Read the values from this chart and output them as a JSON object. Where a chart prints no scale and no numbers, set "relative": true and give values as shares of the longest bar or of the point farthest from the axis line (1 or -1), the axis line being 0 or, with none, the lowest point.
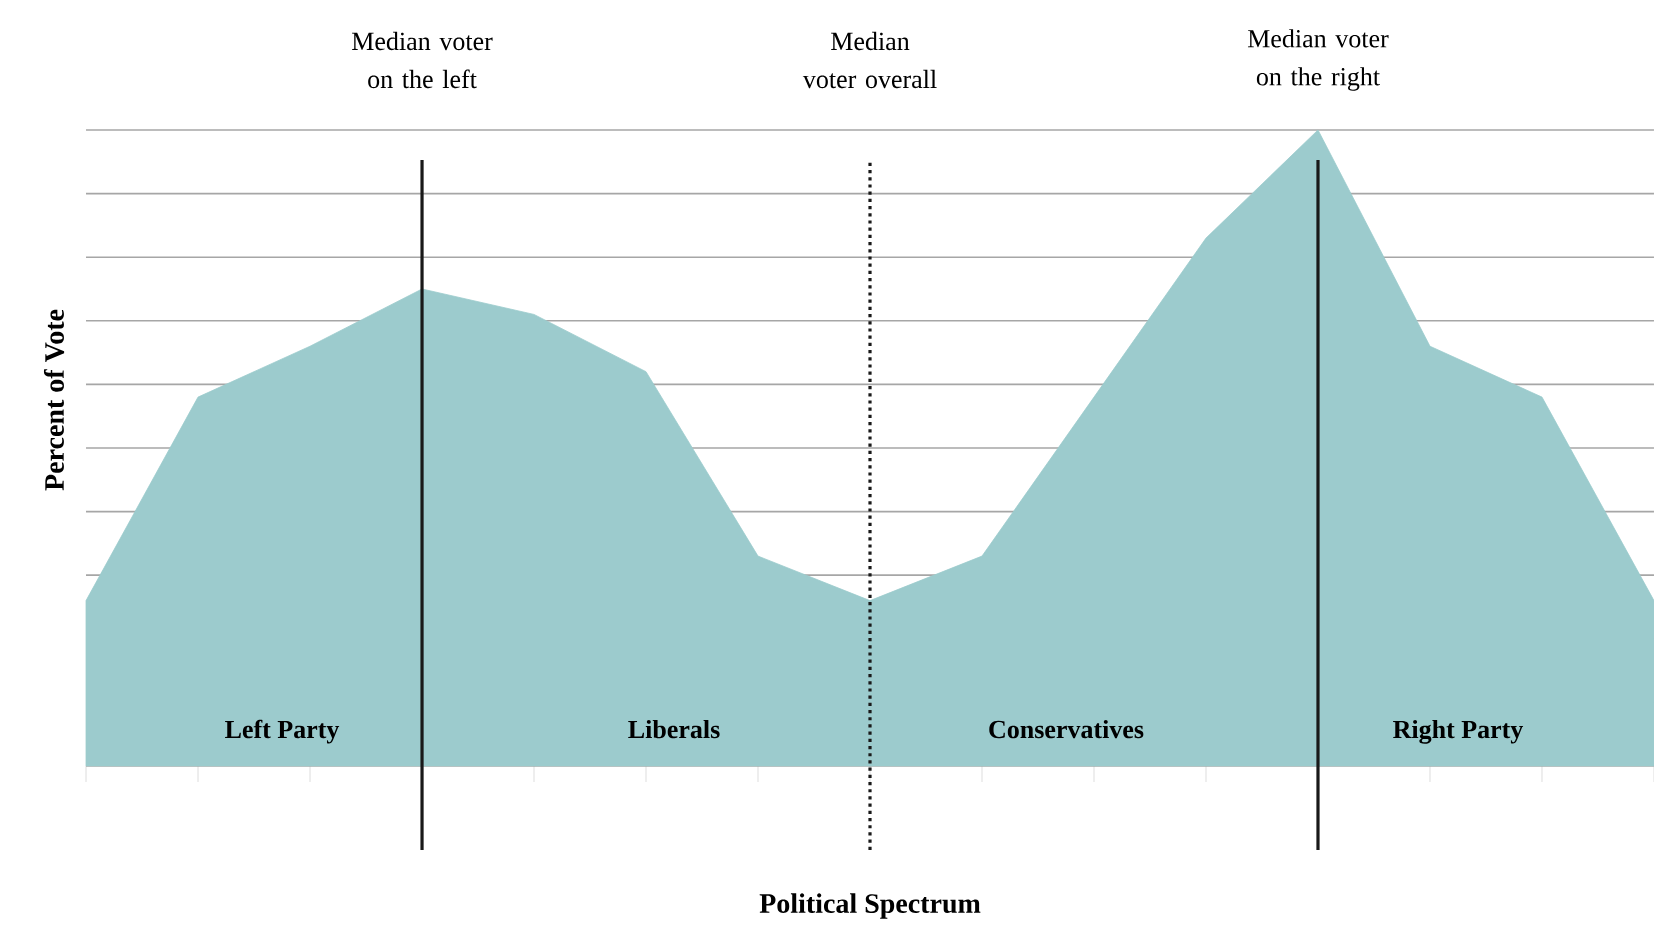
{
  "chart_data": {
    "type": "area",
    "relative": true,
    "xlabel": "Political Spectrum",
    "ylabel": "Percent of Vote",
    "categories": [
      null,
      null,
      null,
      null,
      null,
      null,
      null,
      null,
      null,
      null,
      null,
      null,
      null,
      null,
      null
    ],
    "series": [
      {
        "color": "#9ccbcd",
        "values": [
          0.26,
          0.58,
          0.66,
          0.75,
          0.71,
          0.62,
          0.33,
          0.26,
          0.33,
          0.58,
          0.83,
          1,
          0.66,
          0.58,
          0.26
        ]
      }
    ],
    "annotations": [
      "Left Party",
      "Liberals",
      "Conservatives",
      "Right Party",
      "Median voter on the left",
      "Median voter overall",
      "Median voter on the right"
    ],
    "grid": "y"
  }
}
